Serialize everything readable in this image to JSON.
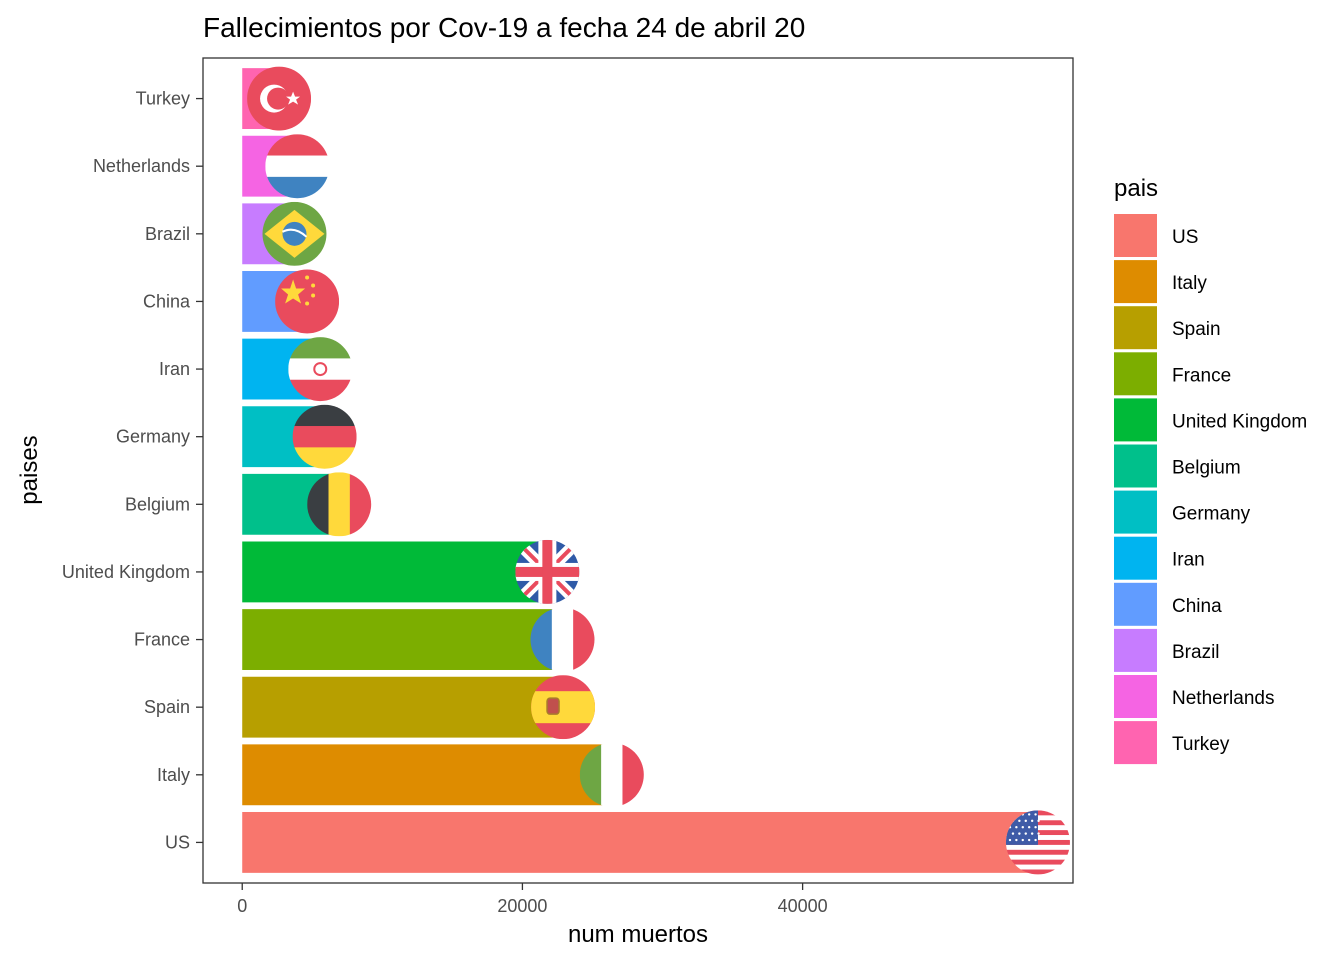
{
  "chart_data": {
    "type": "bar",
    "orientation": "horizontal",
    "title": "Fallecimientos por Cov-19 a fecha 24 de abril 20",
    "xlabel": "num muertos",
    "ylabel": "paises",
    "xlim": [
      -2800,
      59300
    ],
    "xticks": [
      0,
      20000,
      40000
    ],
    "x_tick_labels": [
      "0",
      "20000",
      "40000"
    ],
    "grid": false,
    "legend": {
      "title": "pais",
      "position": "right"
    },
    "categories": [
      "US",
      "Italy",
      "Spain",
      "France",
      "United Kingdom",
      "Belgium",
      "Germany",
      "Iran",
      "China",
      "Brazil",
      "Netherlands",
      "Turkey"
    ],
    "values": [
      56800,
      26380,
      22900,
      22860,
      21780,
      6920,
      5880,
      5570,
      4630,
      3730,
      3930,
      2630
    ],
    "colors": [
      "#F8766D",
      "#DE8C00",
      "#B79F00",
      "#7CAE00",
      "#00BA38",
      "#00C08B",
      "#00BFC4",
      "#00B4F0",
      "#619CFF",
      "#C77CFF",
      "#F564E3",
      "#FF64B0"
    ],
    "flag_icons": [
      "us-flag-icon",
      "italy-flag-icon",
      "spain-flag-icon",
      "france-flag-icon",
      "uk-flag-icon",
      "belgium-flag-icon",
      "germany-flag-icon",
      "iran-flag-icon",
      "china-flag-icon",
      "brazil-flag-icon",
      "netherlands-flag-icon",
      "turkey-flag-icon"
    ]
  }
}
